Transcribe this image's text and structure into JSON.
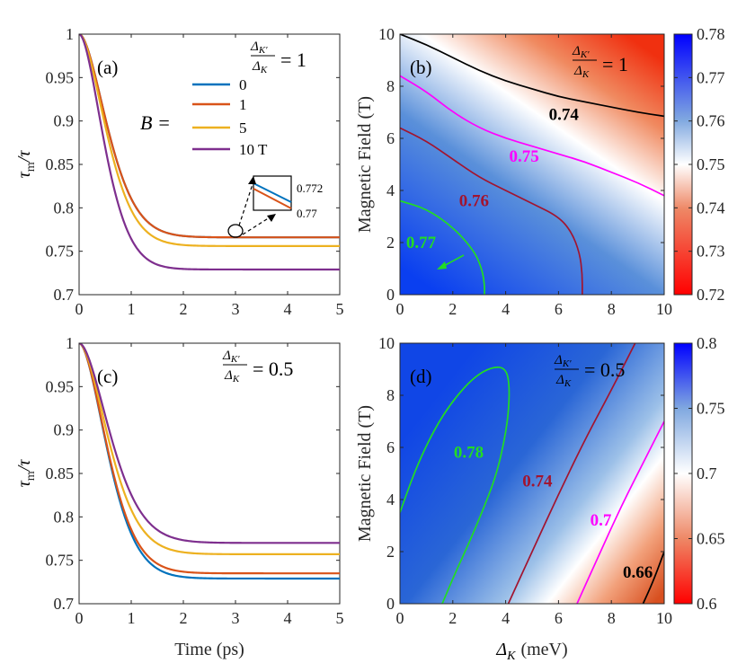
{
  "chart_data": [
    {
      "id": "a",
      "type": "line",
      "panel_label": "(a)",
      "ratio_label": "= 1",
      "ratio_num": "Δ",
      "ratio_num_sub": "K′",
      "ratio_den": "Δ",
      "ratio_den_sub": "K",
      "ylabel_main": "τ",
      "ylabel_sub": "m",
      "ylabel_rest": "/τ",
      "xlabel": "",
      "xlim": [
        0,
        5
      ],
      "ylim": [
        0.7,
        1
      ],
      "xticks": [
        "0",
        "1",
        "2",
        "3",
        "4",
        "5"
      ],
      "yticks": [
        "0.7",
        "0.75",
        "0.8",
        "0.85",
        "0.9",
        "0.95",
        "1"
      ],
      "legend_prefix": "B =",
      "legend_labels": [
        "0",
        "1",
        "5",
        "10 T"
      ],
      "inset_labels": [
        "0.772",
        "0.77"
      ],
      "series": [
        {
          "name": "0",
          "color": "#0072BD",
          "plateau": 0.766,
          "tau": 0.5,
          "n": 2.8
        },
        {
          "name": "1",
          "color": "#D95319",
          "plateau": 0.766,
          "tau": 0.5,
          "n": 2.8
        },
        {
          "name": "5",
          "color": "#EDB120",
          "plateau": 0.756,
          "tau": 0.48,
          "n": 2.8
        },
        {
          "name": "10 T",
          "color": "#7E2F8E",
          "plateau": 0.729,
          "tau": 0.44,
          "n": 2.8
        }
      ]
    },
    {
      "id": "b",
      "type": "heatmap",
      "panel_label": "(b)",
      "ratio_label": "= 1",
      "ratio_num": "Δ",
      "ratio_num_sub": "K′",
      "ratio_den": "Δ",
      "ratio_den_sub": "K",
      "ylabel": "Magnetic Field (T)",
      "xlabel": "",
      "xlim": [
        0,
        10
      ],
      "ylim": [
        0,
        10
      ],
      "xticks": [
        "0",
        "2",
        "4",
        "6",
        "8",
        "10"
      ],
      "yticks": [
        "0",
        "2",
        "4",
        "6",
        "8",
        "10"
      ],
      "colorbar_range": [
        0.72,
        0.78
      ],
      "colorbar_ticks": [
        "0.72",
        "0.73",
        "0.74",
        "0.75",
        "0.76",
        "0.77",
        "0.78"
      ],
      "contours": [
        {
          "label": "0.74",
          "color": "#000000",
          "points": [
            [
              0,
              10
            ],
            [
              1,
              9.6
            ],
            [
              2,
              9.1
            ],
            [
              3,
              8.6
            ],
            [
              4,
              8.2
            ],
            [
              5,
              7.9
            ],
            [
              6,
              7.6
            ],
            [
              7,
              7.4
            ],
            [
              8,
              7.2
            ],
            [
              9,
              7.0
            ],
            [
              10,
              6.85
            ]
          ]
        },
        {
          "label": "0.75",
          "color": "#FF00FF",
          "points": [
            [
              0,
              8.4
            ],
            [
              1,
              7.8
            ],
            [
              2,
              7.0
            ],
            [
              3,
              6.4
            ],
            [
              4,
              6.0
            ],
            [
              5,
              5.7
            ],
            [
              6,
              5.4
            ],
            [
              7,
              5.1
            ],
            [
              8,
              4.7
            ],
            [
              9,
              4.3
            ],
            [
              10,
              3.8
            ]
          ]
        },
        {
          "label": "0.76",
          "color": "#A2142F",
          "points": [
            [
              0,
              6.4
            ],
            [
              1,
              5.9
            ],
            [
              2,
              5.2
            ],
            [
              3,
              4.5
            ],
            [
              4,
              4.0
            ],
            [
              5,
              3.5
            ],
            [
              6,
              3.0
            ],
            [
              6.5,
              2.4
            ],
            [
              6.8,
              1.6
            ],
            [
              6.9,
              0.8
            ],
            [
              6.9,
              0
            ]
          ]
        },
        {
          "label": "0.77",
          "color": "#22DD22",
          "points": [
            [
              0,
              3.6
            ],
            [
              1,
              3.3
            ],
            [
              2,
              2.6
            ],
            [
              2.8,
              1.7
            ],
            [
              3.1,
              1.0
            ],
            [
              3.2,
              0.4
            ],
            [
              3.2,
              0
            ]
          ]
        }
      ]
    },
    {
      "id": "c",
      "type": "line",
      "panel_label": "(c)",
      "ratio_label": "= 0.5",
      "ratio_num": "Δ",
      "ratio_num_sub": "K′",
      "ratio_den": "Δ",
      "ratio_den_sub": "K",
      "ylabel_main": "τ",
      "ylabel_sub": "m",
      "ylabel_rest": "/τ",
      "xlabel": "Time (ps)",
      "xlim": [
        0,
        5
      ],
      "ylim": [
        0.7,
        1
      ],
      "xticks": [
        "0",
        "1",
        "2",
        "3",
        "4",
        "5"
      ],
      "yticks": [
        "0.7",
        "0.75",
        "0.8",
        "0.85",
        "0.9",
        "0.95",
        "1"
      ],
      "series": [
        {
          "name": "0",
          "color": "#0072BD",
          "plateau": 0.729,
          "tau": 0.5,
          "n": 2.8
        },
        {
          "name": "1",
          "color": "#D95319",
          "plateau": 0.735,
          "tau": 0.5,
          "n": 2.8
        },
        {
          "name": "5",
          "color": "#EDB120",
          "plateau": 0.757,
          "tau": 0.52,
          "n": 2.8
        },
        {
          "name": "10 T",
          "color": "#7E2F8E",
          "plateau": 0.77,
          "tau": 0.55,
          "n": 2.8
        }
      ]
    },
    {
      "id": "d",
      "type": "heatmap",
      "panel_label": "(d)",
      "ratio_label": "= 0.5",
      "ratio_num": "Δ",
      "ratio_num_sub": "K′",
      "ratio_den": "Δ",
      "ratio_den_sub": "K",
      "ylabel": "Magnetic Field (T)",
      "xlabel_main": "Δ",
      "xlabel_sub": "K",
      "xlabel_rest": "(meV)",
      "xlim": [
        0,
        10
      ],
      "ylim": [
        0,
        10
      ],
      "xticks": [
        "0",
        "2",
        "4",
        "6",
        "8",
        "10"
      ],
      "yticks": [
        "0",
        "2",
        "4",
        "6",
        "8",
        "10"
      ],
      "colorbar_range": [
        0.6,
        0.8
      ],
      "colorbar_ticks": [
        "0.6",
        "0.65",
        "0.7",
        "0.75",
        "0.8"
      ],
      "contours": [
        {
          "label": "0.78",
          "color": "#22DD22",
          "points": [
            [
              0,
              3.5
            ],
            [
              0.6,
              5.2
            ],
            [
              1.3,
              6.7
            ],
            [
              2.0,
              7.8
            ],
            [
              2.8,
              8.7
            ],
            [
              3.5,
              9.1
            ],
            [
              4.0,
              9.05
            ],
            [
              4.15,
              8.4
            ],
            [
              4.1,
              7.2
            ],
            [
              3.9,
              6.0
            ],
            [
              3.6,
              4.8
            ],
            [
              3.1,
              3.5
            ],
            [
              2.6,
              2.3
            ],
            [
              2.1,
              1.2
            ],
            [
              1.6,
              0
            ]
          ]
        },
        {
          "label": "0.74",
          "color": "#A2142F",
          "points": [
            [
              4.1,
              0
            ],
            [
              5.0,
              2.0
            ],
            [
              6.0,
              4.2
            ],
            [
              7.0,
              6.3
            ],
            [
              8.0,
              8.2
            ],
            [
              8.9,
              10
            ]
          ]
        },
        {
          "label": "0.7",
          "color": "#FF00FF",
          "points": [
            [
              6.7,
              0
            ],
            [
              7.5,
              1.8
            ],
            [
              8.4,
              3.8
            ],
            [
              9.3,
              5.6
            ],
            [
              10,
              7.0
            ]
          ]
        },
        {
          "label": "0.66",
          "color": "#000000",
          "points": [
            [
              9.2,
              0
            ],
            [
              9.6,
              0.9
            ],
            [
              10,
              2.0
            ]
          ]
        }
      ]
    }
  ]
}
